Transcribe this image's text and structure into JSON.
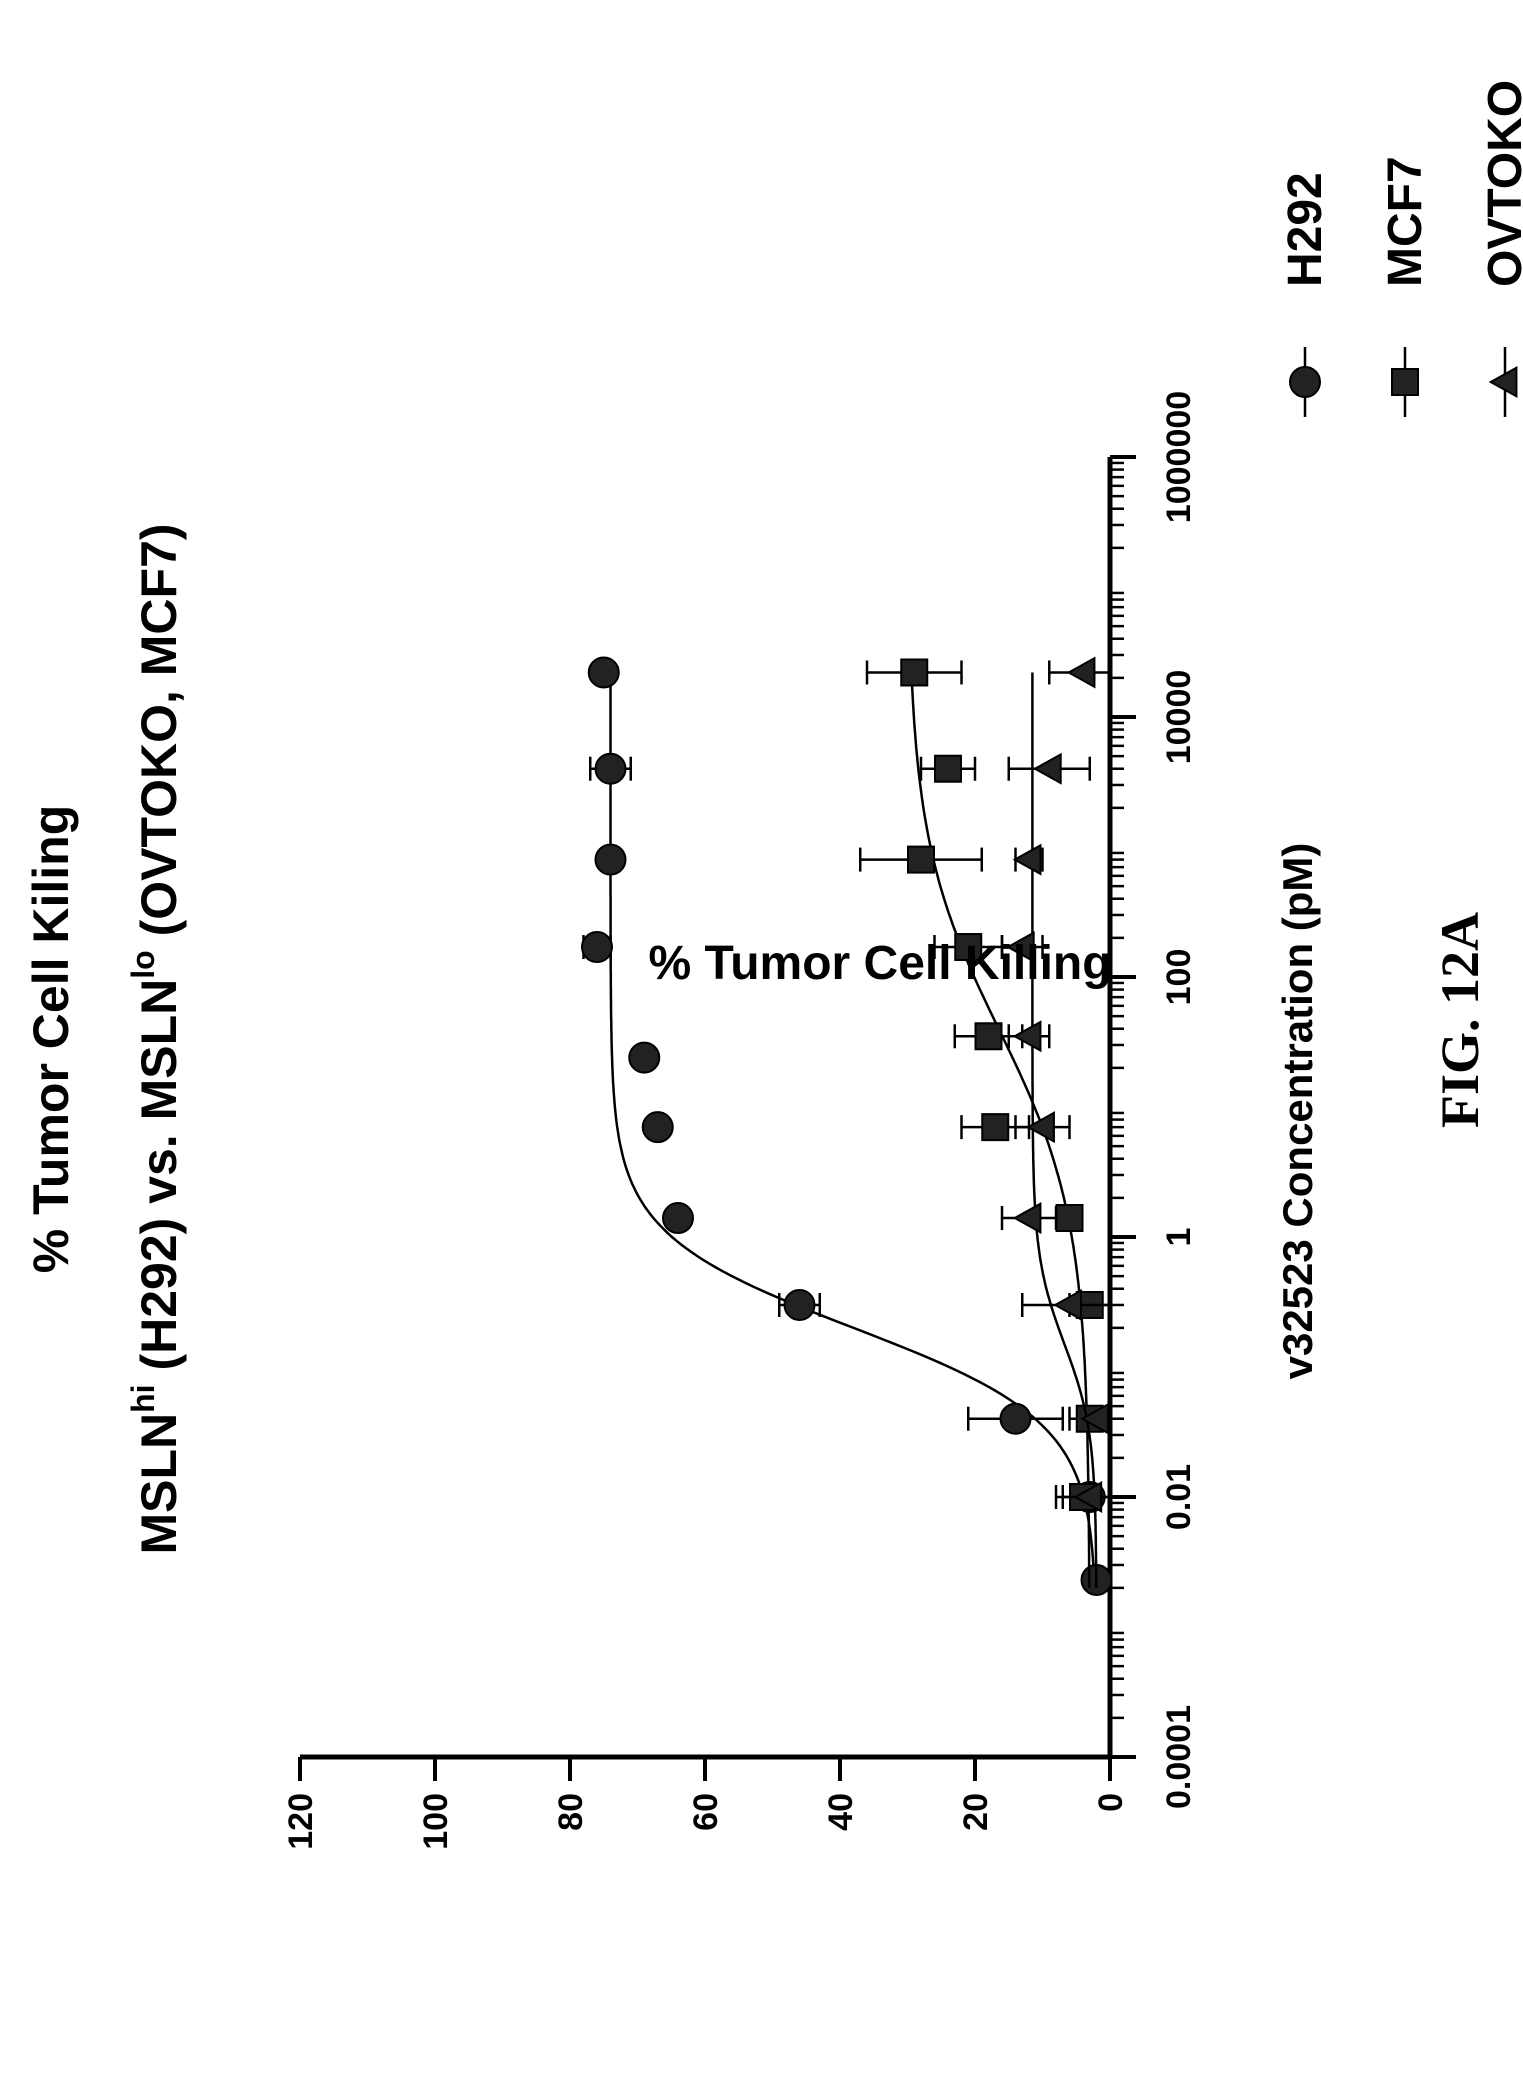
{
  "figure": {
    "caption": "FIG. 12A"
  },
  "chart_data": {
    "type": "scatter",
    "title": "% Tumor Cell Kiling",
    "subtitle": {
      "prefix": "MSLN",
      "sup_hi": "hi",
      "middle": " (H292) vs. MSLN",
      "sup_lo": "lo",
      "suffix": " (OVTOKO, MCF7)"
    },
    "xlabel": "v32523 Concentration (pM)",
    "ylabel": "% Tumor Cell Killing",
    "xscale": "log",
    "xlim": [
      0.0001,
      1000000
    ],
    "ylim": [
      0,
      120
    ],
    "xticks": [
      {
        "value": 0.0001,
        "label": "0.0001"
      },
      {
        "value": 0.01,
        "label": "0.01"
      },
      {
        "value": 1,
        "label": "1"
      },
      {
        "value": 100,
        "label": "100"
      },
      {
        "value": 10000,
        "label": "10000"
      },
      {
        "value": 1000000,
        "label": "1000000"
      }
    ],
    "yticks": [
      {
        "value": 0,
        "label": "0"
      },
      {
        "value": 20,
        "label": "20"
      },
      {
        "value": 40,
        "label": "40"
      },
      {
        "value": 60,
        "label": "60"
      },
      {
        "value": 80,
        "label": "80"
      },
      {
        "value": 100,
        "label": "100"
      },
      {
        "value": 120,
        "label": "120"
      }
    ],
    "legend_position": "right",
    "series": [
      {
        "name": "H292",
        "marker": "circle",
        "x": [
          0.0023,
          0.01,
          0.04,
          0.3,
          1.4,
          7,
          24,
          170,
          800,
          4000,
          22000
        ],
        "y": [
          2,
          3,
          14,
          46,
          64,
          67,
          69,
          76,
          74,
          74,
          75
        ],
        "err": [
          0,
          0,
          7,
          3,
          0,
          0,
          0,
          2,
          0,
          3,
          0
        ],
        "fit": {
          "bottom": 2,
          "top": 74,
          "ec50": 0.2,
          "hill": 1.2
        }
      },
      {
        "name": "MCF7",
        "marker": "square",
        "x": [
          0.01,
          0.04,
          0.3,
          1.4,
          7,
          35,
          170,
          800,
          4000,
          22000
        ],
        "y": [
          4,
          3,
          3,
          6,
          17,
          18,
          21,
          28,
          24,
          29
        ],
        "err": [
          4,
          3,
          3,
          0,
          5,
          5,
          5,
          9,
          4,
          7
        ],
        "fit": {
          "bottom": 3,
          "top": 30,
          "ec50": 40,
          "hill": 0.6
        }
      },
      {
        "name": "OVTOKO",
        "marker": "triangle",
        "x": [
          0.01,
          0.04,
          0.3,
          1.4,
          7,
          35,
          170,
          800,
          4000,
          22000
        ],
        "y": [
          3,
          2,
          6,
          12,
          10,
          12,
          13,
          12,
          9,
          4
        ],
        "err": [
          4,
          0,
          7,
          4,
          4,
          3,
          3,
          2,
          6,
          5
        ],
        "fit": {
          "bottom": 2,
          "top": 11.5,
          "ec50": 0.15,
          "hill": 1.3
        }
      }
    ]
  }
}
